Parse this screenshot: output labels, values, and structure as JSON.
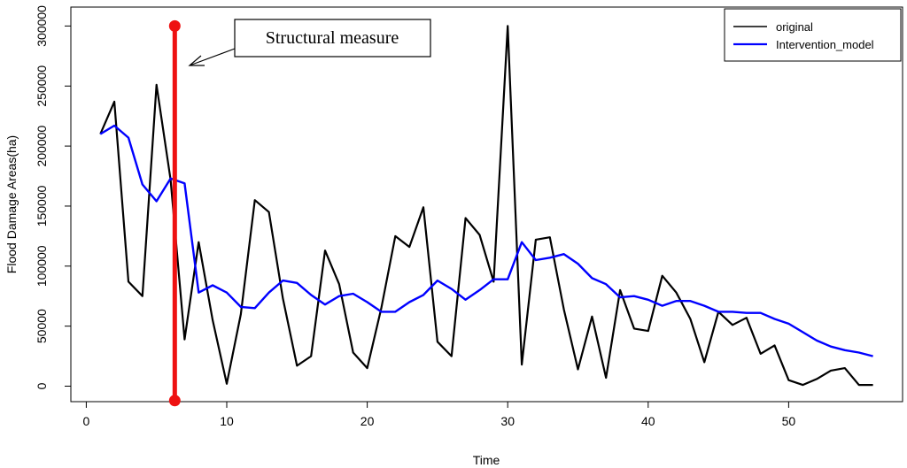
{
  "chart_data": {
    "type": "line",
    "xlabel": "Time",
    "ylabel": "Flood Damage Areas(ha)",
    "xlim": [
      0,
      57
    ],
    "ylim": [
      -12000,
      310000
    ],
    "x_ticks": [
      0,
      10,
      20,
      30,
      40,
      50
    ],
    "y_ticks": [
      0,
      50000,
      100000,
      150000,
      200000,
      250000,
      300000
    ],
    "grid": false,
    "legend_position": "top-right",
    "series": [
      {
        "name": "original",
        "color": "#000000",
        "x": [
          1,
          2,
          3,
          4,
          5,
          6,
          7,
          8,
          9,
          10,
          11,
          12,
          13,
          14,
          15,
          16,
          17,
          18,
          19,
          20,
          21,
          22,
          23,
          24,
          25,
          26,
          27,
          28,
          29,
          30,
          31,
          32,
          33,
          34,
          35,
          36,
          37,
          38,
          39,
          40,
          41,
          42,
          43,
          44,
          45,
          46,
          47,
          48,
          49,
          50,
          51,
          52,
          53,
          54,
          55,
          56
        ],
        "values": [
          210000,
          237000,
          87000,
          75000,
          251000,
          172000,
          39000,
          120000,
          55000,
          2000,
          60000,
          155000,
          145000,
          73000,
          17000,
          25000,
          113000,
          85000,
          28000,
          15000,
          65000,
          125000,
          116000,
          149000,
          37000,
          25000,
          140000,
          126000,
          87000,
          300000,
          18000,
          122000,
          124000,
          64000,
          14000,
          58000,
          7000,
          80000,
          48000,
          46000,
          92000,
          78000,
          56000,
          20000,
          62000,
          51000,
          57000,
          27000,
          34000,
          5000,
          1000,
          6000,
          13000,
          15000,
          1000,
          1000
        ]
      },
      {
        "name": "Intervention_model",
        "color": "#0000ff",
        "x": [
          1,
          2,
          3,
          4,
          5,
          6,
          7,
          8,
          9,
          10,
          11,
          12,
          13,
          14,
          15,
          16,
          17,
          18,
          19,
          20,
          21,
          22,
          23,
          24,
          25,
          26,
          27,
          28,
          29,
          30,
          31,
          32,
          33,
          34,
          35,
          36,
          37,
          38,
          39,
          40,
          41,
          42,
          43,
          44,
          45,
          46,
          47,
          48,
          49,
          50,
          51,
          52,
          53,
          54,
          55,
          56
        ],
        "values": [
          210000,
          217000,
          207000,
          168000,
          154000,
          173000,
          169000,
          78000,
          84000,
          78000,
          66000,
          65000,
          78000,
          88000,
          86000,
          76000,
          68000,
          75000,
          77000,
          70000,
          62000,
          62000,
          70000,
          76000,
          88000,
          81000,
          72000,
          80000,
          89000,
          89000,
          120000,
          105000,
          107000,
          110000,
          102000,
          90000,
          85000,
          74000,
          75000,
          72000,
          67000,
          71000,
          71000,
          67000,
          62000,
          62000,
          61000,
          61000,
          56000,
          52000,
          45000,
          38000,
          33000,
          30000,
          28000,
          25000
        ]
      }
    ],
    "intervention": {
      "x": 6.3,
      "y_start": -12000,
      "y_end": 300000,
      "color": "#ee1111"
    },
    "annotations": [
      {
        "text": "Structural measure"
      }
    ]
  }
}
